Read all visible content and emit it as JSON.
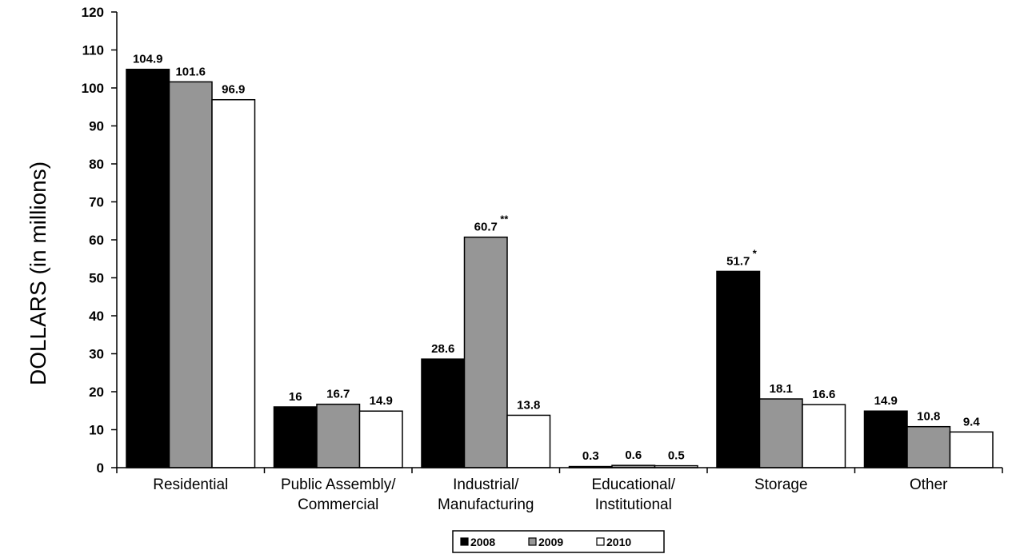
{
  "chart_data": {
    "type": "bar",
    "ylabel": "DOLLARS (in millions)",
    "xlabel": "",
    "ylim": [
      0,
      120
    ],
    "yticks": [
      0,
      10,
      20,
      30,
      40,
      50,
      60,
      70,
      80,
      90,
      100,
      110,
      120
    ],
    "grid": false,
    "legend_position": "bottom-center",
    "categories": [
      [
        "Residential"
      ],
      [
        "Public  Assembly/",
        "Commercial"
      ],
      [
        "Industrial/",
        "Manufacturing"
      ],
      [
        "Educational/",
        "Institutional"
      ],
      [
        "Storage"
      ],
      [
        "Other"
      ]
    ],
    "series": [
      {
        "name": "2008",
        "color": "#000000",
        "values": [
          104.9,
          16,
          28.6,
          0.3,
          51.7,
          14.9
        ],
        "labels": [
          "104.9",
          "16",
          "28.6",
          "0.3",
          "51.7",
          "14.9"
        ],
        "notes": [
          "",
          "",
          "",
          "",
          "*",
          ""
        ]
      },
      {
        "name": "2009",
        "color": "#969696",
        "values": [
          101.6,
          16.7,
          60.7,
          0.6,
          18.1,
          10.8
        ],
        "labels": [
          "101.6",
          "16.7",
          "60.7",
          "0.6",
          "18.1",
          "10.8"
        ],
        "notes": [
          "",
          "",
          "**",
          "",
          "",
          ""
        ]
      },
      {
        "name": "2010",
        "color": "#ffffff",
        "values": [
          96.9,
          14.9,
          13.8,
          0.5,
          16.6,
          9.4
        ],
        "labels": [
          "96.9",
          "14.9",
          "13.8",
          "0.5",
          "16.6",
          "9.4"
        ],
        "notes": [
          "",
          "",
          "",
          "",
          "",
          ""
        ]
      }
    ]
  }
}
